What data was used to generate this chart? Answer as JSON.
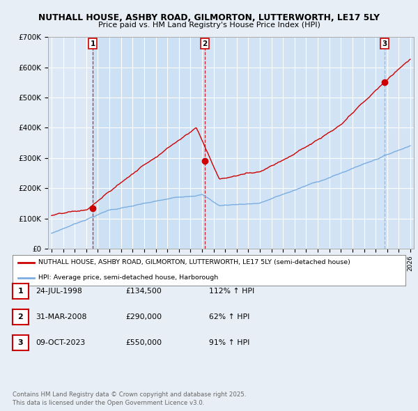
{
  "title1": "NUTHALL HOUSE, ASHBY ROAD, GILMORTON, LUTTERWORTH, LE17 5LY",
  "title2": "Price paid vs. HM Land Registry's House Price Index (HPI)",
  "background_color": "#e8eef5",
  "plot_bg_color": "#dce8f5",
  "red_color": "#cc0000",
  "blue_color": "#7aade0",
  "sale_dates_num": [
    1998.56,
    2008.25,
    2023.77
  ],
  "sale_prices": [
    134500,
    290000,
    550000
  ],
  "sale_labels": [
    "1",
    "2",
    "3"
  ],
  "legend_red": "NUTHALL HOUSE, ASHBY ROAD, GILMORTON, LUTTERWORTH, LE17 5LY (semi-detached house)",
  "legend_blue": "HPI: Average price, semi-detached house, Harborough",
  "table_rows": [
    [
      "1",
      "24-JUL-1998",
      "£134,500",
      "112% ↑ HPI"
    ],
    [
      "2",
      "31-MAR-2008",
      "£290,000",
      "62% ↑ HPI"
    ],
    [
      "3",
      "09-OCT-2023",
      "£550,000",
      "91% ↑ HPI"
    ]
  ],
  "footnote": "Contains HM Land Registry data © Crown copyright and database right 2025.\nThis data is licensed under the Open Government Licence v3.0.",
  "ylim": [
    0,
    700000
  ],
  "xlim_start": 1994.7,
  "xlim_end": 2026.3,
  "yticks": [
    0,
    100000,
    200000,
    300000,
    400000,
    500000,
    600000,
    700000
  ],
  "ytick_labels": [
    "£0",
    "£100K",
    "£200K",
    "£300K",
    "£400K",
    "£500K",
    "£600K",
    "£700K"
  ]
}
